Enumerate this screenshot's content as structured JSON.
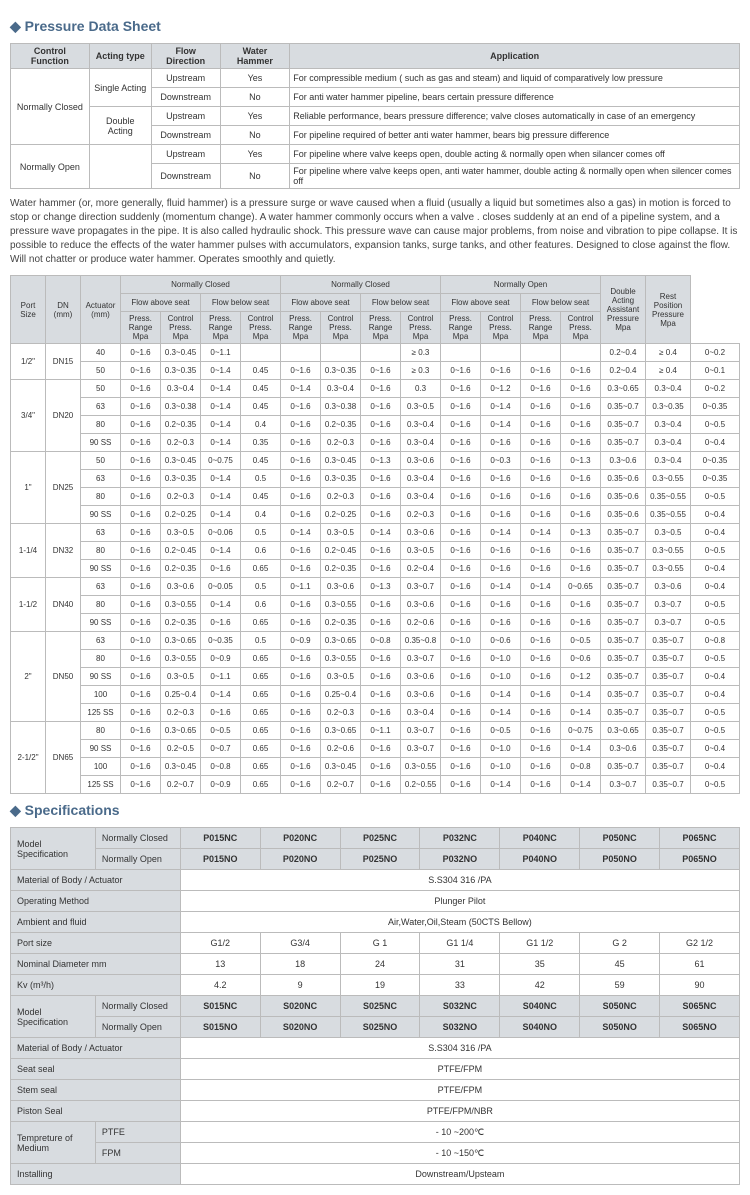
{
  "titles": {
    "pressure": "Pressure Data Sheet",
    "specs": "Specifications"
  },
  "t1": {
    "headers": [
      "Control Function",
      "Acting type",
      "Flow Direction",
      "Water Hammer",
      "Application"
    ],
    "rows": [
      [
        "Normally Closed",
        "Single Acting",
        "Upstream",
        "Yes",
        "For compressible medium ( such as gas and steam) and liquid of comparatively low pressure"
      ],
      [
        "",
        "",
        "Downstream",
        "No",
        "For anti water hammer pipeline, bears certain pressure difference"
      ],
      [
        "",
        "Double Acting",
        "Upstream",
        "Yes",
        "Reliable performance, bears pressure difference; valve closes automatically in case of an emergency"
      ],
      [
        "",
        "",
        "Downstream",
        "No",
        "For pipeline required of better anti water hammer, bears big pressure difference"
      ],
      [
        "Normally Open",
        "",
        "Upstream",
        "Yes",
        "For pipeline where valve keeps open, double acting & normally open when silancer comes off"
      ],
      [
        "",
        "",
        "Downstream",
        "No",
        "For pipeline where valve keeps open, anti water hammer, double acting & normally open when silencer comes off"
      ]
    ]
  },
  "desc": "Water hammer (or, more generally, fluid hammer) is a pressure surge or wave caused when a fluid (usually a liquid but sometimes also a gas) in motion is forced to stop or change direction suddenly (momentum change). A water hammer commonly occurs when a valve . closes suddenly at an end of a pipeline system, and a pressure wave propagates in the pipe. It is also called hydraulic shock. This pressure wave can cause major problems, from noise and vibration to pipe collapse. It is possible to reduce the effects of the water hammer pulses with accumulators, expansion tanks, surge tanks, and other features. Designed to close against the flow. Will not chatter or produce water hammer. Operates smoothly and quietly.",
  "t2": {
    "topHeaders": [
      "Port Size",
      "DN (mm)",
      "Actuator (mm)",
      "Normally Closed",
      "Normally Closed",
      "Normally Open"
    ],
    "subHeaders": [
      "Flow above seat",
      "Flow below seat",
      "Flow above seat",
      "Flow below seat",
      "Flow above seat",
      "Flow below seat",
      "Double Acting Assistant Pressure Mpa",
      "Rest Position Pressure Mpa"
    ],
    "colHeaders": [
      "Press. Range Mpa",
      "Control Press. Mpa"
    ],
    "data": [
      {
        "ps": "1/2\"",
        "dn": "DN15",
        "rows": [
          [
            "40",
            "0~1.6",
            "0.3~0.45",
            "0~1.1",
            "",
            "",
            "",
            "",
            "≥ 0.3",
            "",
            "",
            "",
            "",
            "0.2~0.4",
            "≥ 0.4",
            "0~0.2"
          ],
          [
            "50",
            "0~1.6",
            "0.3~0.35",
            "0~1.4",
            "0.45",
            "0~1.6",
            "0.3~0.35",
            "0~1.6",
            "≥ 0.3",
            "0~1.6",
            "0~1.6",
            "0~1.6",
            "0~1.6",
            "0.2~0.4",
            "≥ 0.4",
            "0~0.1"
          ]
        ]
      },
      {
        "ps": "3/4\"",
        "dn": "DN20",
        "rows": [
          [
            "50",
            "0~1.6",
            "0.3~0.4",
            "0~1.4",
            "0.45",
            "0~1.4",
            "0.3~0.4",
            "0~1.6",
            "0.3",
            "0~1.6",
            "0~1.2",
            "0~1.6",
            "0~1.6",
            "0.3~0.65",
            "0.3~0.4",
            "0~0.2"
          ],
          [
            "63",
            "0~1.6",
            "0.3~0.38",
            "0~1.4",
            "0.45",
            "0~1.6",
            "0.3~0.38",
            "0~1.6",
            "0.3~0.5",
            "0~1.6",
            "0~1.4",
            "0~1.6",
            "0~1.6",
            "0.35~0.7",
            "0.3~0.35",
            "0~0.35"
          ],
          [
            "80",
            "0~1.6",
            "0.2~0.35",
            "0~1.4",
            "0.4",
            "0~1.6",
            "0.2~0.35",
            "0~1.6",
            "0.3~0.4",
            "0~1.6",
            "0~1.4",
            "0~1.6",
            "0~1.6",
            "0.35~0.7",
            "0.3~0.4",
            "0~0.5"
          ],
          [
            "90 SS",
            "0~1.6",
            "0.2~0.3",
            "0~1.4",
            "0.35",
            "0~1.6",
            "0.2~0.3",
            "0~1.6",
            "0.3~0.4",
            "0~1.6",
            "0~1.6",
            "0~1.6",
            "0~1.6",
            "0.35~0.7",
            "0.3~0.4",
            "0~0.4"
          ]
        ]
      },
      {
        "ps": "1\"",
        "dn": "DN25",
        "rows": [
          [
            "50",
            "0~1.6",
            "0.3~0.45",
            "0~0.75",
            "0.45",
            "0~1.6",
            "0.3~0.45",
            "0~1.3",
            "0.3~0.6",
            "0~1.6",
            "0~0.3",
            "0~1.6",
            "0~1.3",
            "0.3~0.6",
            "0.3~0.4",
            "0~0.35"
          ],
          [
            "63",
            "0~1.6",
            "0.3~0.35",
            "0~1.4",
            "0.5",
            "0~1.6",
            "0.3~0.35",
            "0~1.6",
            "0.3~0.4",
            "0~1.6",
            "0~1.6",
            "0~1.6",
            "0~1.6",
            "0.35~0.6",
            "0.3~0.55",
            "0~0.35"
          ],
          [
            "80",
            "0~1.6",
            "0.2~0.3",
            "0~1.4",
            "0.45",
            "0~1.6",
            "0.2~0.3",
            "0~1.6",
            "0.3~0.4",
            "0~1.6",
            "0~1.6",
            "0~1.6",
            "0~1.6",
            "0.35~0.6",
            "0.35~0.55",
            "0~0.5"
          ],
          [
            "90 SS",
            "0~1.6",
            "0.2~0.25",
            "0~1.4",
            "0.4",
            "0~1.6",
            "0.2~0.25",
            "0~1.6",
            "0.2~0.3",
            "0~1.6",
            "0~1.6",
            "0~1.6",
            "0~1.6",
            "0.35~0.6",
            "0.35~0.55",
            "0~0.4"
          ]
        ]
      },
      {
        "ps": "1-1/4",
        "dn": "DN32",
        "rows": [
          [
            "63",
            "0~1.6",
            "0.3~0.5",
            "0~0.06",
            "0.5",
            "0~1.4",
            "0.3~0.5",
            "0~1.4",
            "0.3~0.6",
            "0~1.6",
            "0~1.4",
            "0~1.4",
            "0~1.3",
            "0.35~0.7",
            "0.3~0.5",
            "0~0.4"
          ],
          [
            "80",
            "0~1.6",
            "0.2~0.45",
            "0~1.4",
            "0.6",
            "0~1.6",
            "0.2~0.45",
            "0~1.6",
            "0.3~0.5",
            "0~1.6",
            "0~1.6",
            "0~1.6",
            "0~1.6",
            "0.35~0.7",
            "0.3~0.55",
            "0~0.5"
          ],
          [
            "90 SS",
            "0~1.6",
            "0.2~0.35",
            "0~1.6",
            "0.65",
            "0~1.6",
            "0.2~0.35",
            "0~1.6",
            "0.2~0.4",
            "0~1.6",
            "0~1.6",
            "0~1.6",
            "0~1.6",
            "0.35~0.7",
            "0.3~0.55",
            "0~0.4"
          ]
        ]
      },
      {
        "ps": "1-1/2",
        "dn": "DN40",
        "rows": [
          [
            "63",
            "0~1.6",
            "0.3~0.6",
            "0~0.05",
            "0.5",
            "0~1.1",
            "0.3~0.6",
            "0~1.3",
            "0.3~0.7",
            "0~1.6",
            "0~1.4",
            "0~1.4",
            "0~0.65",
            "0.35~0.7",
            "0.3~0.6",
            "0~0.4"
          ],
          [
            "80",
            "0~1.6",
            "0.3~0.55",
            "0~1.4",
            "0.6",
            "0~1.6",
            "0.3~0.55",
            "0~1.6",
            "0.3~0.6",
            "0~1.6",
            "0~1.6",
            "0~1.6",
            "0~1.6",
            "0.35~0.7",
            "0.3~0.7",
            "0~0.5"
          ],
          [
            "90 SS",
            "0~1.6",
            "0.2~0.35",
            "0~1.6",
            "0.65",
            "0~1.6",
            "0.2~0.35",
            "0~1.6",
            "0.2~0.6",
            "0~1.6",
            "0~1.6",
            "0~1.6",
            "0~1.6",
            "0.35~0.7",
            "0.3~0.7",
            "0~0.5"
          ]
        ]
      },
      {
        "ps": "2\"",
        "dn": "DN50",
        "rows": [
          [
            "63",
            "0~1.0",
            "0.3~0.65",
            "0~0.35",
            "0.5",
            "0~0.9",
            "0.3~0.65",
            "0~0.8",
            "0.35~0.8",
            "0~1.0",
            "0~0.6",
            "0~1.6",
            "0~0.5",
            "0.35~0.7",
            "0.35~0.7",
            "0~0.8"
          ],
          [
            "80",
            "0~1.6",
            "0.3~0.55",
            "0~0.9",
            "0.65",
            "0~1.6",
            "0.3~0.55",
            "0~1.6",
            "0.3~0.7",
            "0~1.6",
            "0~1.0",
            "0~1.6",
            "0~0.6",
            "0.35~0.7",
            "0.35~0.7",
            "0~0.5"
          ],
          [
            "90 SS",
            "0~1.6",
            "0.3~0.5",
            "0~1.1",
            "0.65",
            "0~1.6",
            "0.3~0.5",
            "0~1.6",
            "0.3~0.6",
            "0~1.6",
            "0~1.0",
            "0~1.6",
            "0~1.2",
            "0.35~0.7",
            "0.35~0.7",
            "0~0.4"
          ],
          [
            "100",
            "0~1.6",
            "0.25~0.4",
            "0~1.4",
            "0.65",
            "0~1.6",
            "0.25~0.4",
            "0~1.6",
            "0.3~0.6",
            "0~1.6",
            "0~1.4",
            "0~1.6",
            "0~1.4",
            "0.35~0.7",
            "0.35~0.7",
            "0~0.4"
          ],
          [
            "125 SS",
            "0~1.6",
            "0.2~0.3",
            "0~1.6",
            "0.65",
            "0~1.6",
            "0.2~0.3",
            "0~1.6",
            "0.3~0.4",
            "0~1.6",
            "0~1.4",
            "0~1.6",
            "0~1.4",
            "0.35~0.7",
            "0.35~0.7",
            "0~0.5"
          ]
        ]
      },
      {
        "ps": "2-1/2\"",
        "dn": "DN65",
        "rows": [
          [
            "80",
            "0~1.6",
            "0.3~0.65",
            "0~0.5",
            "0.65",
            "0~1.6",
            "0.3~0.65",
            "0~1.1",
            "0.3~0.7",
            "0~1.6",
            "0~0.5",
            "0~1.6",
            "0~0.75",
            "0.3~0.65",
            "0.35~0.7",
            "0~0.5"
          ],
          [
            "90 SS",
            "0~1.6",
            "0.2~0.5",
            "0~0.7",
            "0.65",
            "0~1.6",
            "0.2~0.6",
            "0~1.6",
            "0.3~0.7",
            "0~1.6",
            "0~1.0",
            "0~1.6",
            "0~1.4",
            "0.3~0.6",
            "0.35~0.7",
            "0~0.4"
          ],
          [
            "100",
            "0~1.6",
            "0.3~0.45",
            "0~0.8",
            "0.65",
            "0~1.6",
            "0.3~0.45",
            "0~1.6",
            "0.3~0.55",
            "0~1.6",
            "0~1.0",
            "0~1.6",
            "0~0.8",
            "0.35~0.7",
            "0.35~0.7",
            "0~0.4"
          ],
          [
            "125 SS",
            "0~1.6",
            "0.2~0.7",
            "0~0.9",
            "0.65",
            "0~1.6",
            "0.2~0.7",
            "0~1.6",
            "0.2~0.55",
            "0~1.6",
            "0~1.4",
            "0~1.6",
            "0~1.4",
            "0.3~0.7",
            "0.35~0.7",
            "0~0.5"
          ]
        ]
      }
    ]
  },
  "t3": {
    "rows": [
      {
        "type": "dual",
        "l1": "Model",
        "l2": "Specification",
        "s1": "Normally Closed",
        "s2": "Normally Open",
        "v1": [
          "P015NC",
          "P020NC",
          "P025NC",
          "P032NC",
          "P040NC",
          "P050NC",
          "P065NC"
        ],
        "v2": [
          "P015NO",
          "P020NO",
          "P025NO",
          "P032NO",
          "P040NO",
          "P050NO",
          "P065NO"
        ]
      },
      {
        "type": "single",
        "label": "Material of Body / Actuator",
        "val": "S.S304 316 /PA"
      },
      {
        "type": "single",
        "label": "Operating Method",
        "val": "Plunger Pilot"
      },
      {
        "type": "single",
        "label": "Ambient and fluid",
        "val": "Air,Water,Oil,Steam (50CTS Bellow)"
      },
      {
        "type": "multi",
        "label": "Port size",
        "vals": [
          "G1/2",
          "G3/4",
          "G 1",
          "G1 1/4",
          "G1 1/2",
          "G 2",
          "G2 1/2"
        ]
      },
      {
        "type": "multi",
        "label": "Nominal Diameter mm",
        "vals": [
          "13",
          "18",
          "24",
          "31",
          "35",
          "45",
          "61"
        ]
      },
      {
        "type": "multi",
        "label": "Kv (m³/h)",
        "vals": [
          "4.2",
          "9",
          "19",
          "33",
          "42",
          "59",
          "90"
        ]
      },
      {
        "type": "dual",
        "l1": "Model",
        "l2": "Specification",
        "s1": "Normally Closed",
        "s2": "Normally Open",
        "v1": [
          "S015NC",
          "S020NC",
          "S025NC",
          "S032NC",
          "S040NC",
          "S050NC",
          "S065NC"
        ],
        "v2": [
          "S015NO",
          "S020NO",
          "S025NO",
          "S032NO",
          "S040NO",
          "S050NO",
          "S065NO"
        ]
      },
      {
        "type": "single",
        "label": "Material of Body / Actuator",
        "val": "S.S304 316 /PA"
      },
      {
        "type": "single",
        "label": "Seat seal",
        "val": "PTFE/FPM"
      },
      {
        "type": "single",
        "label": "Stem seal",
        "val": "PTFE/FPM"
      },
      {
        "type": "single",
        "label": "Piston Seal",
        "val": "PTFE/FPM/NBR"
      },
      {
        "type": "temp",
        "label": "Tempreture of Medium",
        "s1": "PTFE",
        "s2": "FPM",
        "v1": "- 10 ~200℃",
        "v2": "- 10 ~150℃"
      },
      {
        "type": "single",
        "label": "Installing",
        "val": "Downstream/Upsteam"
      }
    ]
  }
}
